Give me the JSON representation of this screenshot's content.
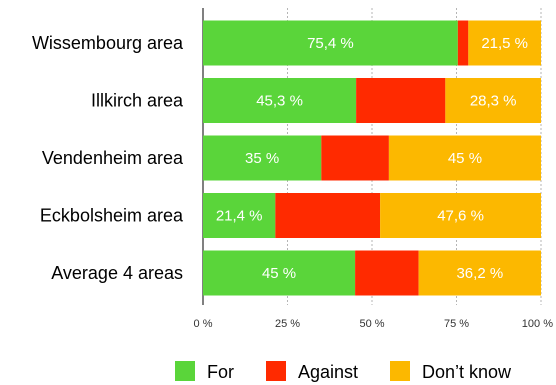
{
  "chart_data": {
    "type": "bar",
    "orientation": "horizontal",
    "stacked": true,
    "categories": [
      "Wissembourg area",
      "Illkirch area",
      "Vendenheim area",
      "Eckbolsheim area",
      "Average 4 areas"
    ],
    "series": [
      {
        "name": "For",
        "color": "#5ad53a",
        "values": [
          75.4,
          45.3,
          35,
          21.4,
          45
        ],
        "labels": [
          "75,4 %",
          "45,3 %",
          "35 %",
          "21,4 %",
          "45 %"
        ]
      },
      {
        "name": "Against",
        "color": "#ff2a00",
        "values": [
          3.1,
          26.4,
          20,
          31,
          18.8
        ],
        "labels": [
          "",
          "",
          "",
          "",
          ""
        ]
      },
      {
        "name": "Don’t know",
        "color": "#fcb800",
        "values": [
          21.5,
          28.3,
          45,
          47.6,
          36.2
        ],
        "labels": [
          "21,5 %",
          "28,3 %",
          "45 %",
          "47,6 %",
          "36,2 %"
        ]
      }
    ],
    "xlim": [
      0,
      100
    ],
    "xticks": [
      0,
      25,
      50,
      75,
      100
    ],
    "xtick_labels": [
      "0 %",
      "25 %",
      "50 %",
      "75 %",
      "100 %"
    ],
    "grid": true,
    "legend_position": "bottom"
  }
}
